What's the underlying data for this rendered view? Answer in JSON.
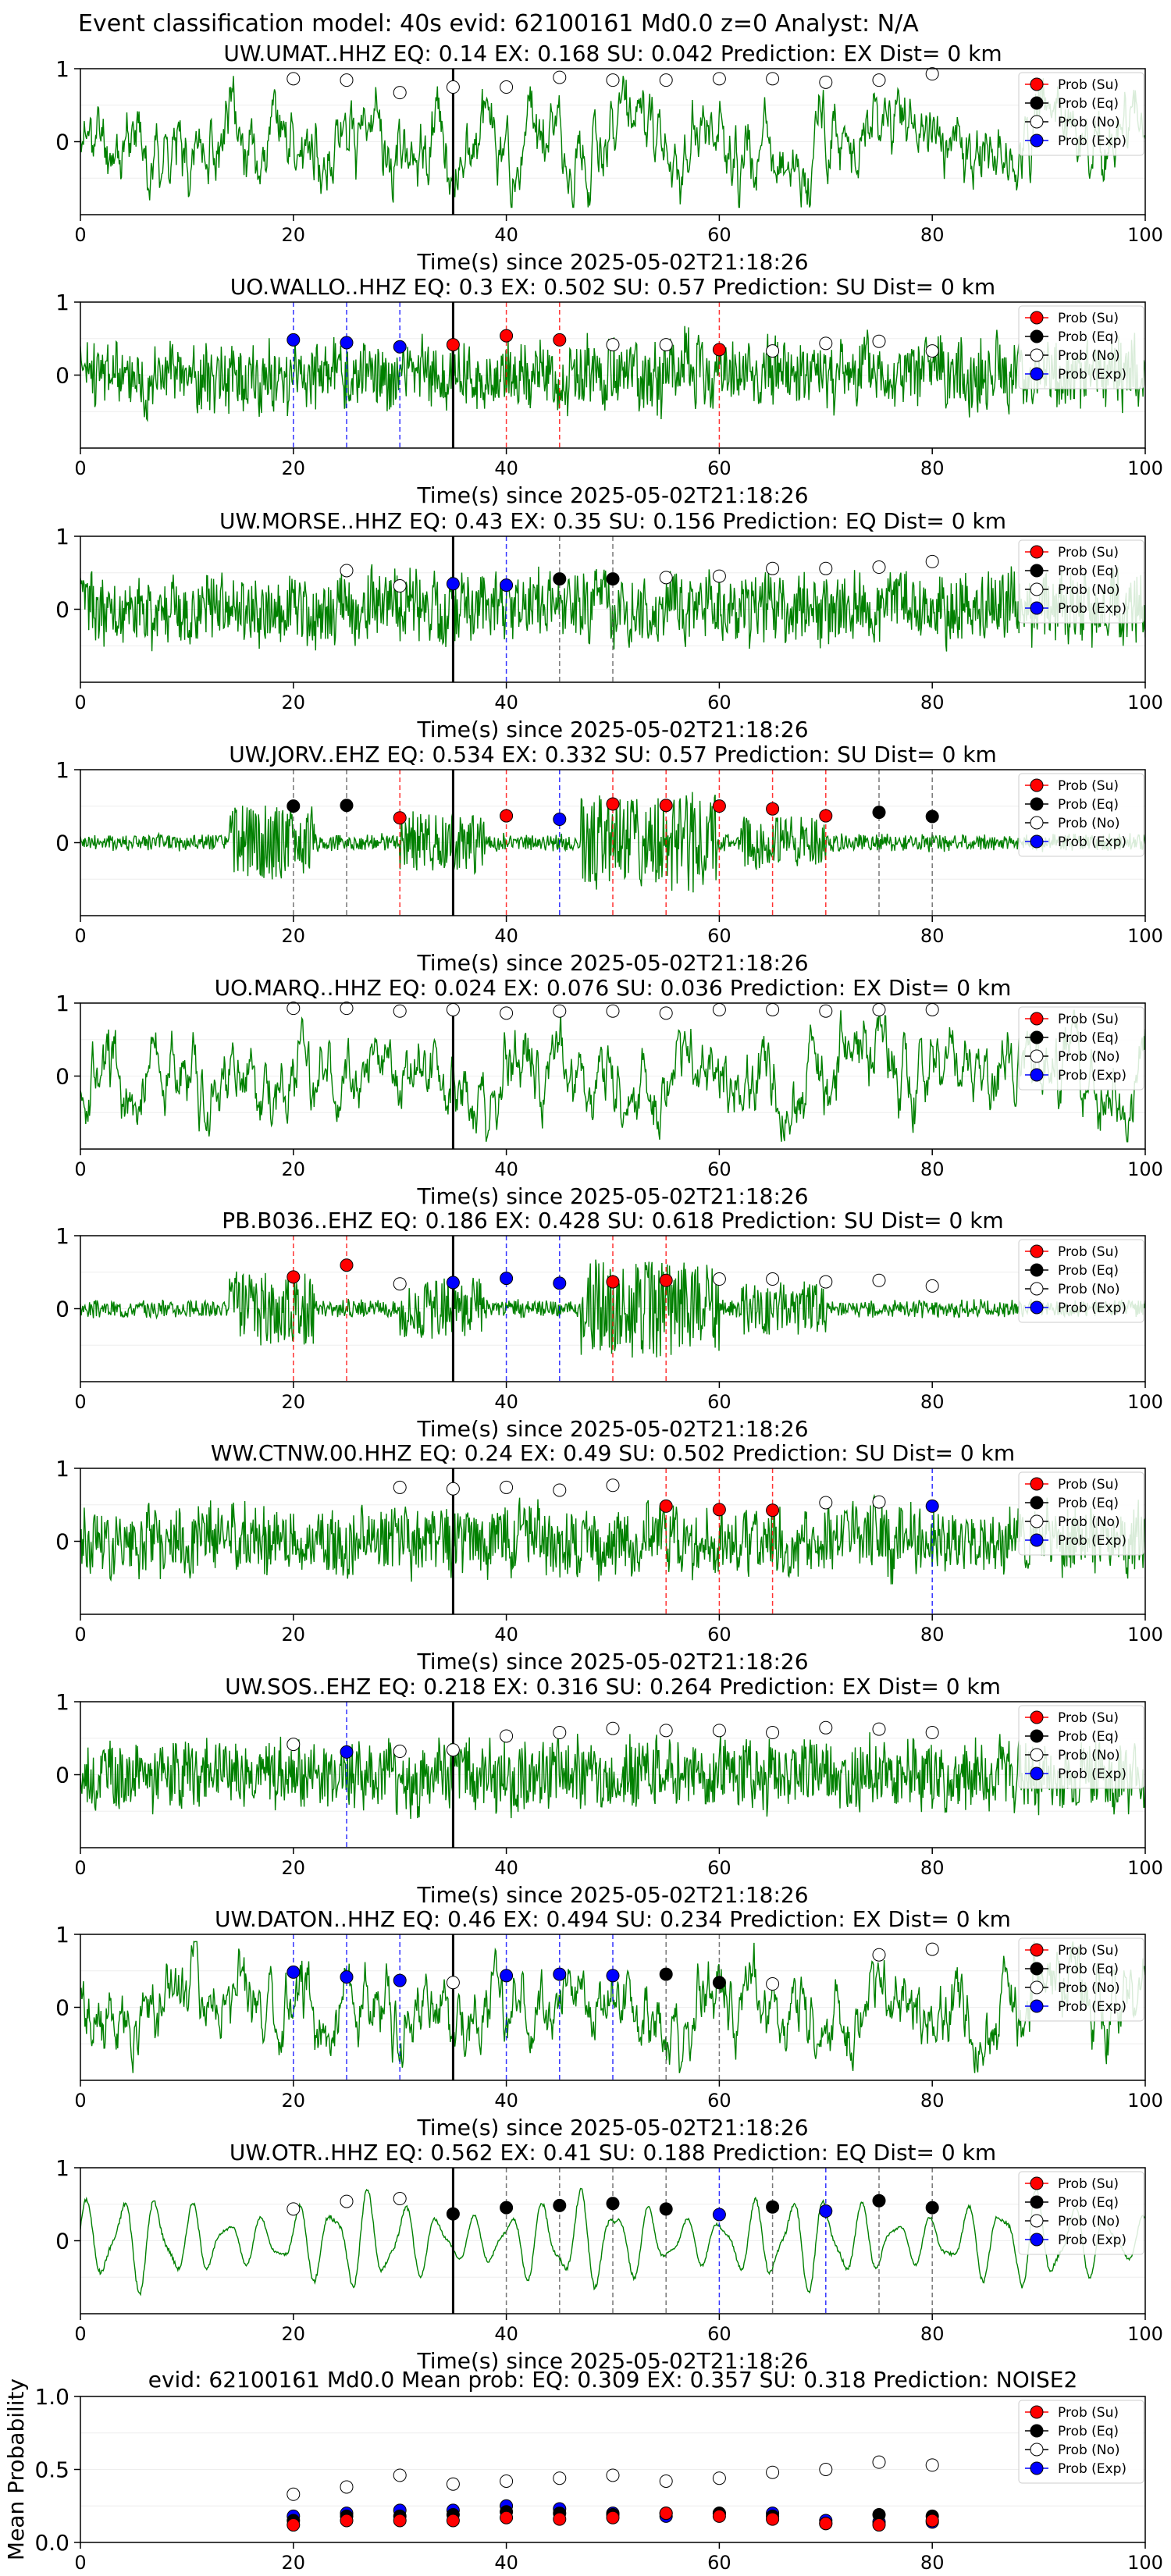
{
  "figure": {
    "suptitle": "Event classification model: 40s evid: 62100161 Md0.0 z=0 Analyst: N/A"
  },
  "legend": [
    {
      "label": "Prob (Su)",
      "face": "#ff0000",
      "edge": "#000000"
    },
    {
      "label": "Prob (Eq)",
      "face": "#000000",
      "edge": "#000000"
    },
    {
      "label": "Prob (No)",
      "face": "#ffffff",
      "edge": "#000000"
    },
    {
      "label": "Prob (Exp)",
      "face": "#0000ff",
      "edge": "#000000"
    }
  ],
  "colors": {
    "waveform": "#008000",
    "su": "#ff0000",
    "eq": "#000000",
    "no": "#ffffff",
    "exp": "#0000ff",
    "origin_line": "#000000",
    "su_dash": "#ff0000",
    "eq_dash": "#555555",
    "exp_dash": "#0000ff"
  },
  "chart_data": [
    {
      "type": "line",
      "title": "UW.UMAT..HHZ   EQ: 0.14  EX: 0.168  SU: 0.042   Prediction: EX    Dist= 0 km",
      "xlabel": "Time(s) since 2025-05-02T21:18:26",
      "xlim": [
        0,
        100
      ],
      "ylim": [
        -1,
        1
      ],
      "xticks": [
        "0",
        "20",
        "40",
        "60",
        "80",
        "100"
      ],
      "yticks": [
        "0",
        "1"
      ],
      "origin_time": 35,
      "waveform": {
        "style": "broadband",
        "seed": 11
      },
      "windows": [
        {
          "t": 20,
          "class": "No",
          "p": 0.9
        },
        {
          "t": 25,
          "class": "No",
          "p": 0.88
        },
        {
          "t": 30,
          "class": "No",
          "p": 0.7
        },
        {
          "t": 35,
          "class": "No",
          "p": 0.78
        },
        {
          "t": 40,
          "class": "No",
          "p": 0.78
        },
        {
          "t": 45,
          "class": "No",
          "p": 0.92
        },
        {
          "t": 50,
          "class": "No",
          "p": 0.88
        },
        {
          "t": 55,
          "class": "No",
          "p": 0.88
        },
        {
          "t": 60,
          "class": "No",
          "p": 0.9
        },
        {
          "t": 65,
          "class": "No",
          "p": 0.9
        },
        {
          "t": 70,
          "class": "No",
          "p": 0.85
        },
        {
          "t": 75,
          "class": "No",
          "p": 0.88
        },
        {
          "t": 80,
          "class": "No",
          "p": 0.97
        }
      ]
    },
    {
      "type": "line",
      "title": "UO.WALLO..HHZ   EQ: 0.3  EX: 0.502  SU: 0.57   Prediction: SU    Dist= 0 km",
      "xlabel": "Time(s) since 2025-05-02T21:18:26",
      "xlim": [
        0,
        100
      ],
      "ylim": [
        -1,
        1
      ],
      "xticks": [
        "0",
        "20",
        "40",
        "60",
        "80",
        "100"
      ],
      "yticks": [
        "0",
        "1"
      ],
      "origin_time": 35,
      "waveform": {
        "style": "noisy",
        "seed": 23
      },
      "windows": [
        {
          "t": 20,
          "class": "Exp",
          "p": 0.5
        },
        {
          "t": 25,
          "class": "Exp",
          "p": 0.46
        },
        {
          "t": 30,
          "class": "Exp",
          "p": 0.4
        },
        {
          "t": 35,
          "class": "Su",
          "p": 0.43
        },
        {
          "t": 40,
          "class": "Su",
          "p": 0.56
        },
        {
          "t": 45,
          "class": "Su",
          "p": 0.5
        },
        {
          "t": 50,
          "class": "No",
          "p": 0.43
        },
        {
          "t": 55,
          "class": "No",
          "p": 0.43
        },
        {
          "t": 60,
          "class": "Su",
          "p": 0.36
        },
        {
          "t": 65,
          "class": "No",
          "p": 0.34
        },
        {
          "t": 70,
          "class": "No",
          "p": 0.45
        },
        {
          "t": 75,
          "class": "No",
          "p": 0.48
        },
        {
          "t": 80,
          "class": "No",
          "p": 0.34
        }
      ]
    },
    {
      "type": "line",
      "title": "UW.MORSE..HHZ   EQ: 0.43  EX: 0.35  SU: 0.156   Prediction: EQ    Dist= 0 km",
      "xlabel": "Time(s) since 2025-05-02T21:18:26",
      "xlim": [
        0,
        100
      ],
      "ylim": [
        -1,
        1
      ],
      "xticks": [
        "0",
        "20",
        "40",
        "60",
        "80",
        "100"
      ],
      "yticks": [
        "0",
        "1"
      ],
      "origin_time": 35,
      "waveform": {
        "style": "noisy",
        "seed": 37
      },
      "windows": [
        {
          "t": 25,
          "class": "No",
          "p": 0.55
        },
        {
          "t": 30,
          "class": "No",
          "p": 0.33
        },
        {
          "t": 35,
          "class": "Exp",
          "p": 0.36
        },
        {
          "t": 40,
          "class": "Exp",
          "p": 0.34
        },
        {
          "t": 45,
          "class": "Eq",
          "p": 0.43
        },
        {
          "t": 50,
          "class": "Eq",
          "p": 0.43
        },
        {
          "t": 55,
          "class": "No",
          "p": 0.45
        },
        {
          "t": 60,
          "class": "No",
          "p": 0.47
        },
        {
          "t": 65,
          "class": "No",
          "p": 0.58
        },
        {
          "t": 70,
          "class": "No",
          "p": 0.58
        },
        {
          "t": 75,
          "class": "No",
          "p": 0.6
        },
        {
          "t": 80,
          "class": "No",
          "p": 0.68
        }
      ]
    },
    {
      "type": "line",
      "title": "UW.JORV..EHZ   EQ: 0.534  EX: 0.332  SU: 0.57   Prediction: SU    Dist= 0 km",
      "xlabel": "Time(s) since 2025-05-02T21:18:26",
      "xlim": [
        0,
        100
      ],
      "ylim": [
        -1,
        1
      ],
      "xticks": [
        "0",
        "20",
        "40",
        "60",
        "80",
        "100"
      ],
      "yticks": [
        "0",
        "1"
      ],
      "origin_time": 35,
      "waveform": {
        "style": "bursts",
        "seed": 41
      },
      "windows": [
        {
          "t": 20,
          "class": "Eq",
          "p": 0.52
        },
        {
          "t": 25,
          "class": "Eq",
          "p": 0.53
        },
        {
          "t": 30,
          "class": "Su",
          "p": 0.35
        },
        {
          "t": 40,
          "class": "Su",
          "p": 0.38
        },
        {
          "t": 45,
          "class": "Exp",
          "p": 0.33
        },
        {
          "t": 50,
          "class": "Su",
          "p": 0.55
        },
        {
          "t": 55,
          "class": "Su",
          "p": 0.53
        },
        {
          "t": 60,
          "class": "Su",
          "p": 0.52
        },
        {
          "t": 65,
          "class": "Su",
          "p": 0.48
        },
        {
          "t": 70,
          "class": "Su",
          "p": 0.38
        },
        {
          "t": 75,
          "class": "Eq",
          "p": 0.43
        },
        {
          "t": 80,
          "class": "Eq",
          "p": 0.37
        }
      ]
    },
    {
      "type": "line",
      "title": "UO.MARQ..HHZ   EQ: 0.024  EX: 0.076  SU: 0.036   Prediction: EX    Dist= 0 km",
      "xlabel": "Time(s) since 2025-05-02T21:18:26",
      "xlim": [
        0,
        100
      ],
      "ylim": [
        -1,
        1
      ],
      "xticks": [
        "0",
        "20",
        "40",
        "60",
        "80",
        "100"
      ],
      "yticks": [
        "0",
        "1"
      ],
      "origin_time": 35,
      "waveform": {
        "style": "broadband",
        "seed": 53
      },
      "windows": [
        {
          "t": 20,
          "class": "No",
          "p": 0.97
        },
        {
          "t": 25,
          "class": "No",
          "p": 0.97
        },
        {
          "t": 30,
          "class": "No",
          "p": 0.93
        },
        {
          "t": 35,
          "class": "No",
          "p": 0.95
        },
        {
          "t": 40,
          "class": "No",
          "p": 0.9
        },
        {
          "t": 45,
          "class": "No",
          "p": 0.93
        },
        {
          "t": 50,
          "class": "No",
          "p": 0.93
        },
        {
          "t": 55,
          "class": "No",
          "p": 0.9
        },
        {
          "t": 60,
          "class": "No",
          "p": 0.95
        },
        {
          "t": 65,
          "class": "No",
          "p": 0.95
        },
        {
          "t": 70,
          "class": "No",
          "p": 0.93
        },
        {
          "t": 75,
          "class": "No",
          "p": 0.95
        },
        {
          "t": 80,
          "class": "No",
          "p": 0.95
        }
      ]
    },
    {
      "type": "line",
      "title": "PB.B036..EHZ   EQ: 0.186  EX: 0.428  SU: 0.618   Prediction: SU    Dist= 0 km",
      "xlabel": "Time(s) since 2025-05-02T21:18:26",
      "xlim": [
        0,
        100
      ],
      "ylim": [
        -1,
        1
      ],
      "xticks": [
        "0",
        "20",
        "40",
        "60",
        "80",
        "100"
      ],
      "yticks": [
        "0",
        "1"
      ],
      "origin_time": 35,
      "waveform": {
        "style": "bursts",
        "seed": 67
      },
      "windows": [
        {
          "t": 20,
          "class": "Su",
          "p": 0.45
        },
        {
          "t": 25,
          "class": "Su",
          "p": 0.62
        },
        {
          "t": 30,
          "class": "No",
          "p": 0.35
        },
        {
          "t": 35,
          "class": "Exp",
          "p": 0.37
        },
        {
          "t": 40,
          "class": "Exp",
          "p": 0.43
        },
        {
          "t": 45,
          "class": "Exp",
          "p": 0.36
        },
        {
          "t": 50,
          "class": "Su",
          "p": 0.38
        },
        {
          "t": 55,
          "class": "Su",
          "p": 0.4
        },
        {
          "t": 60,
          "class": "No",
          "p": 0.42
        },
        {
          "t": 65,
          "class": "No",
          "p": 0.42
        },
        {
          "t": 70,
          "class": "No",
          "p": 0.38
        },
        {
          "t": 75,
          "class": "No",
          "p": 0.4
        },
        {
          "t": 80,
          "class": "No",
          "p": 0.32
        }
      ]
    },
    {
      "type": "line",
      "title": "WW.CTNW.00.HHZ   EQ: 0.24  EX: 0.49  SU: 0.502   Prediction: SU    Dist= 0 km",
      "xlabel": "Time(s) since 2025-05-02T21:18:26",
      "xlim": [
        0,
        100
      ],
      "ylim": [
        -1,
        1
      ],
      "xticks": [
        "0",
        "20",
        "40",
        "60",
        "80",
        "100"
      ],
      "yticks": [
        "0",
        "1"
      ],
      "origin_time": 35,
      "waveform": {
        "style": "noisy",
        "seed": 79
      },
      "windows": [
        {
          "t": 30,
          "class": "No",
          "p": 0.77
        },
        {
          "t": 35,
          "class": "No",
          "p": 0.75
        },
        {
          "t": 40,
          "class": "No",
          "p": 0.77
        },
        {
          "t": 45,
          "class": "No",
          "p": 0.73
        },
        {
          "t": 50,
          "class": "No",
          "p": 0.8
        },
        {
          "t": 55,
          "class": "Su",
          "p": 0.5
        },
        {
          "t": 60,
          "class": "Su",
          "p": 0.45
        },
        {
          "t": 65,
          "class": "Su",
          "p": 0.44
        },
        {
          "t": 70,
          "class": "No",
          "p": 0.55
        },
        {
          "t": 75,
          "class": "No",
          "p": 0.56
        },
        {
          "t": 80,
          "class": "Exp",
          "p": 0.5
        }
      ]
    },
    {
      "type": "line",
      "title": "UW.SOS..EHZ   EQ: 0.218  EX: 0.316  SU: 0.264   Prediction: EX    Dist= 0 km",
      "xlabel": "Time(s) since 2025-05-02T21:18:26",
      "xlim": [
        0,
        100
      ],
      "ylim": [
        -1,
        1
      ],
      "xticks": [
        "0",
        "20",
        "40",
        "60",
        "80",
        "100"
      ],
      "yticks": [
        "0",
        "1"
      ],
      "origin_time": 35,
      "waveform": {
        "style": "noisy",
        "seed": 83
      },
      "windows": [
        {
          "t": 20,
          "class": "No",
          "p": 0.43
        },
        {
          "t": 25,
          "class": "Exp",
          "p": 0.32
        },
        {
          "t": 30,
          "class": "No",
          "p": 0.33
        },
        {
          "t": 35,
          "class": "No",
          "p": 0.35
        },
        {
          "t": 40,
          "class": "No",
          "p": 0.55
        },
        {
          "t": 45,
          "class": "No",
          "p": 0.6
        },
        {
          "t": 50,
          "class": "No",
          "p": 0.66
        },
        {
          "t": 55,
          "class": "No",
          "p": 0.63
        },
        {
          "t": 60,
          "class": "No",
          "p": 0.63
        },
        {
          "t": 65,
          "class": "No",
          "p": 0.6
        },
        {
          "t": 70,
          "class": "No",
          "p": 0.67
        },
        {
          "t": 75,
          "class": "No",
          "p": 0.65
        },
        {
          "t": 80,
          "class": "No",
          "p": 0.6
        }
      ]
    },
    {
      "type": "line",
      "title": "UW.DATON..HHZ   EQ: 0.46  EX: 0.494  SU: 0.234   Prediction: EX    Dist= 0 km",
      "xlabel": "Time(s) since 2025-05-02T21:18:26",
      "xlim": [
        0,
        100
      ],
      "ylim": [
        -1,
        1
      ],
      "xticks": [
        "0",
        "20",
        "40",
        "60",
        "80",
        "100"
      ],
      "yticks": [
        "0",
        "1"
      ],
      "origin_time": 35,
      "waveform": {
        "style": "broadband",
        "seed": 97
      },
      "windows": [
        {
          "t": 20,
          "class": "Exp",
          "p": 0.5
        },
        {
          "t": 25,
          "class": "Exp",
          "p": 0.43
        },
        {
          "t": 30,
          "class": "Exp",
          "p": 0.38
        },
        {
          "t": 35,
          "class": "No",
          "p": 0.35
        },
        {
          "t": 40,
          "class": "Exp",
          "p": 0.45
        },
        {
          "t": 45,
          "class": "Exp",
          "p": 0.47
        },
        {
          "t": 50,
          "class": "Exp",
          "p": 0.45
        },
        {
          "t": 55,
          "class": "Eq",
          "p": 0.47
        },
        {
          "t": 60,
          "class": "Eq",
          "p": 0.35
        },
        {
          "t": 65,
          "class": "No",
          "p": 0.33
        },
        {
          "t": 75,
          "class": "No",
          "p": 0.75
        },
        {
          "t": 80,
          "class": "No",
          "p": 0.83
        }
      ]
    },
    {
      "type": "line",
      "title": "UW.OTR..HHZ   EQ: 0.562  EX: 0.41  SU: 0.188   Prediction: EQ    Dist= 0 km",
      "xlabel": "Time(s) since 2025-05-02T21:18:26",
      "xlim": [
        0,
        100
      ],
      "ylim": [
        -1,
        1
      ],
      "xticks": [
        "0",
        "20",
        "40",
        "60",
        "80",
        "100"
      ],
      "yticks": [
        "0",
        "1"
      ],
      "origin_time": 35,
      "waveform": {
        "style": "smooth",
        "seed": 101
      },
      "windows": [
        {
          "t": 20,
          "class": "No",
          "p": 0.45
        },
        {
          "t": 25,
          "class": "No",
          "p": 0.56
        },
        {
          "t": 30,
          "class": "No",
          "p": 0.6
        },
        {
          "t": 35,
          "class": "Eq",
          "p": 0.38
        },
        {
          "t": 40,
          "class": "Eq",
          "p": 0.47
        },
        {
          "t": 45,
          "class": "Eq",
          "p": 0.5
        },
        {
          "t": 50,
          "class": "Eq",
          "p": 0.53
        },
        {
          "t": 55,
          "class": "Eq",
          "p": 0.45
        },
        {
          "t": 60,
          "class": "Exp",
          "p": 0.37
        },
        {
          "t": 65,
          "class": "Eq",
          "p": 0.48
        },
        {
          "t": 70,
          "class": "Exp",
          "p": 0.42
        },
        {
          "t": 75,
          "class": "Eq",
          "p": 0.57
        },
        {
          "t": 80,
          "class": "Eq",
          "p": 0.47
        }
      ]
    },
    {
      "type": "scatter",
      "title": "evid: 62100161  Md0.0   Mean prob:   EQ: 0.309  EX: 0.357  SU: 0.318   Prediction: NOISE2",
      "ylabel": "Mean Probability",
      "xlim": [
        0,
        100
      ],
      "ylim": [
        0,
        1
      ],
      "xticks": [
        "0",
        "20",
        "40",
        "60",
        "80",
        "100"
      ],
      "yticks": [
        "0.0",
        "0.5",
        "1.0"
      ],
      "x": [
        20,
        25,
        30,
        35,
        40,
        45,
        50,
        55,
        60,
        65,
        70,
        75,
        80
      ],
      "series": [
        {
          "name": "Prob (Su)",
          "values": [
            0.12,
            0.15,
            0.15,
            0.15,
            0.17,
            0.16,
            0.17,
            0.2,
            0.18,
            0.16,
            0.13,
            0.12,
            0.15
          ]
        },
        {
          "name": "Prob (Eq)",
          "values": [
            0.15,
            0.18,
            0.18,
            0.19,
            0.21,
            0.2,
            0.19,
            0.2,
            0.2,
            0.18,
            0.13,
            0.19,
            0.18
          ]
        },
        {
          "name": "Prob (No)",
          "values": [
            0.33,
            0.38,
            0.46,
            0.4,
            0.42,
            0.44,
            0.46,
            0.42,
            0.44,
            0.48,
            0.5,
            0.55,
            0.53
          ]
        },
        {
          "name": "Prob (Exp)",
          "values": [
            0.18,
            0.2,
            0.22,
            0.22,
            0.25,
            0.23,
            0.2,
            0.18,
            0.2,
            0.2,
            0.15,
            0.14,
            0.14
          ]
        }
      ]
    }
  ]
}
